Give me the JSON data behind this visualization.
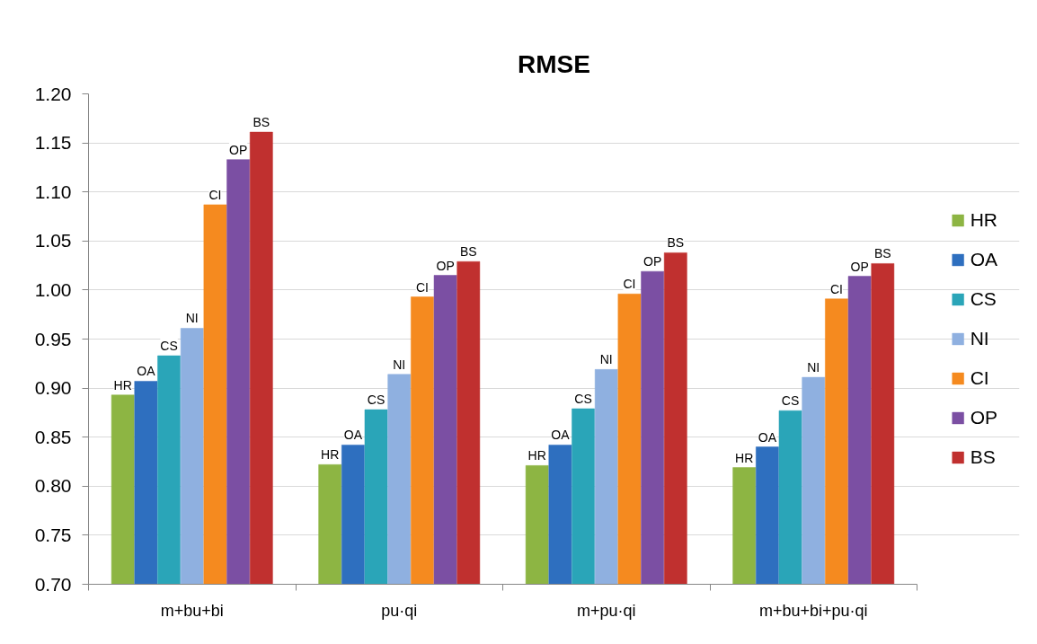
{
  "chart_data": {
    "type": "bar",
    "title": "RMSE",
    "categories": [
      "m+bu+bi",
      "pu·qi",
      "m+pu·qi",
      "m+bu+bi+pu·qi"
    ],
    "series": [
      {
        "name": "HR",
        "color": "#8db543",
        "values": [
          0.893,
          0.822,
          0.821,
          0.819
        ],
        "value_labels": [
          "HR",
          "HR",
          "HR",
          "HR"
        ]
      },
      {
        "name": "OA",
        "color": "#2e6fbf",
        "values": [
          0.907,
          0.842,
          0.842,
          0.84
        ],
        "value_labels": [
          "OA",
          "OA",
          "OA",
          "OA"
        ]
      },
      {
        "name": "CS",
        "color": "#2aa5b8",
        "values": [
          0.933,
          0.878,
          0.879,
          0.877
        ],
        "value_labels": [
          "CS",
          "CS",
          "CS",
          "CS"
        ]
      },
      {
        "name": "NI",
        "color": "#8fb0e0",
        "values": [
          0.961,
          0.914,
          0.919,
          0.911
        ],
        "value_labels": [
          "NI",
          "NI",
          "NI",
          "NI"
        ]
      },
      {
        "name": "CI",
        "color": "#f58a1f",
        "values": [
          1.087,
          0.993,
          0.996,
          0.991
        ],
        "value_labels": [
          "CI",
          "CI",
          "CI",
          "CI"
        ]
      },
      {
        "name": "OP",
        "color": "#7b4fa3",
        "values": [
          1.133,
          1.015,
          1.019,
          1.014
        ],
        "value_labels": [
          "OP",
          "OP",
          "OP",
          "OP"
        ]
      },
      {
        "name": "BS",
        "color": "#c0302f",
        "values": [
          1.161,
          1.029,
          1.038,
          1.027
        ],
        "value_labels": [
          "BS",
          "BS",
          "BS",
          "BS"
        ]
      }
    ],
    "ylim": [
      0.7,
      1.2
    ],
    "yticks": [
      {
        "value": 0.7,
        "label": "0.70"
      },
      {
        "value": 0.75,
        "label": "0.75"
      },
      {
        "value": 0.8,
        "label": "0.80"
      },
      {
        "value": 0.85,
        "label": "0.85"
      },
      {
        "value": 0.9,
        "label": "0.90"
      },
      {
        "value": 0.95,
        "label": "0.95"
      },
      {
        "value": 1.0,
        "label": "1.00"
      },
      {
        "value": 1.05,
        "label": "1.05"
      },
      {
        "value": 1.1,
        "label": "1.10"
      },
      {
        "value": 1.15,
        "label": "1.15"
      },
      {
        "value": 1.2,
        "label": "1.20"
      }
    ],
    "grid": "y",
    "legend": "right"
  }
}
